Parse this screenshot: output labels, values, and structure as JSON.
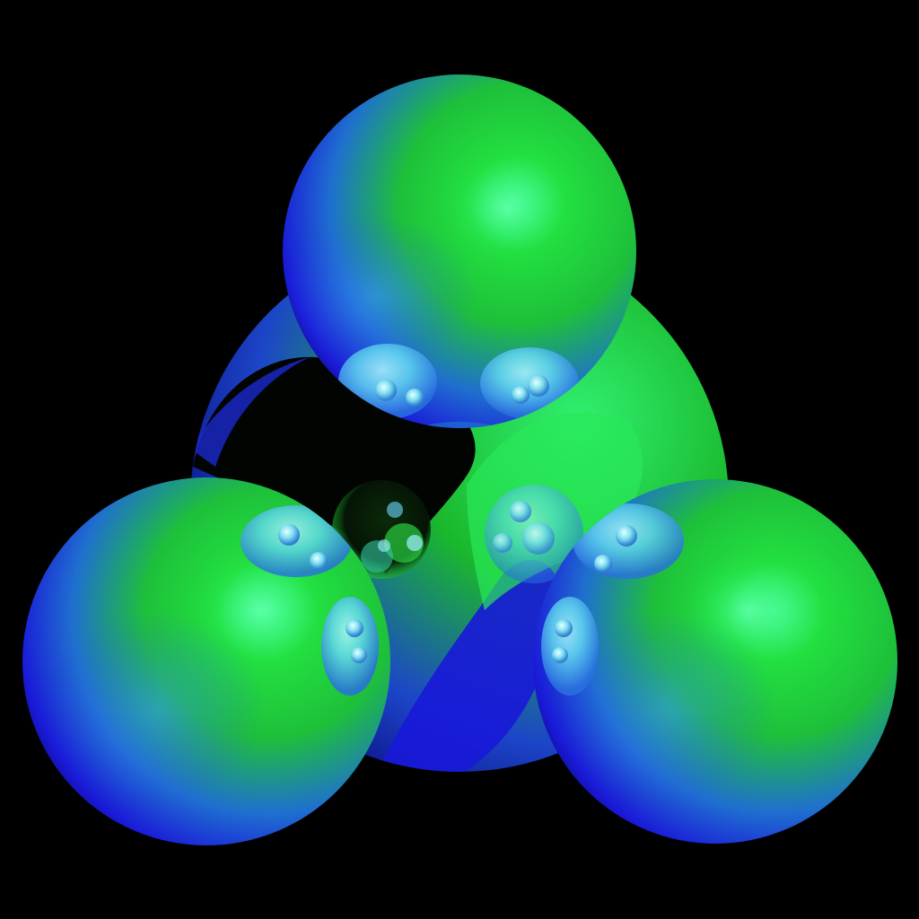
{
  "scene": {
    "background_color": "#000000",
    "palette": {
      "green": "#1fd61f",
      "green_highlight": "#4dff8c",
      "blue": "#1a1ae6",
      "deep_blue": "#0a0a8c",
      "cyan_reflection": "#66e6ff"
    },
    "objects": [
      "back-sphere",
      "top-sphere",
      "left-sphere",
      "right-sphere"
    ]
  }
}
